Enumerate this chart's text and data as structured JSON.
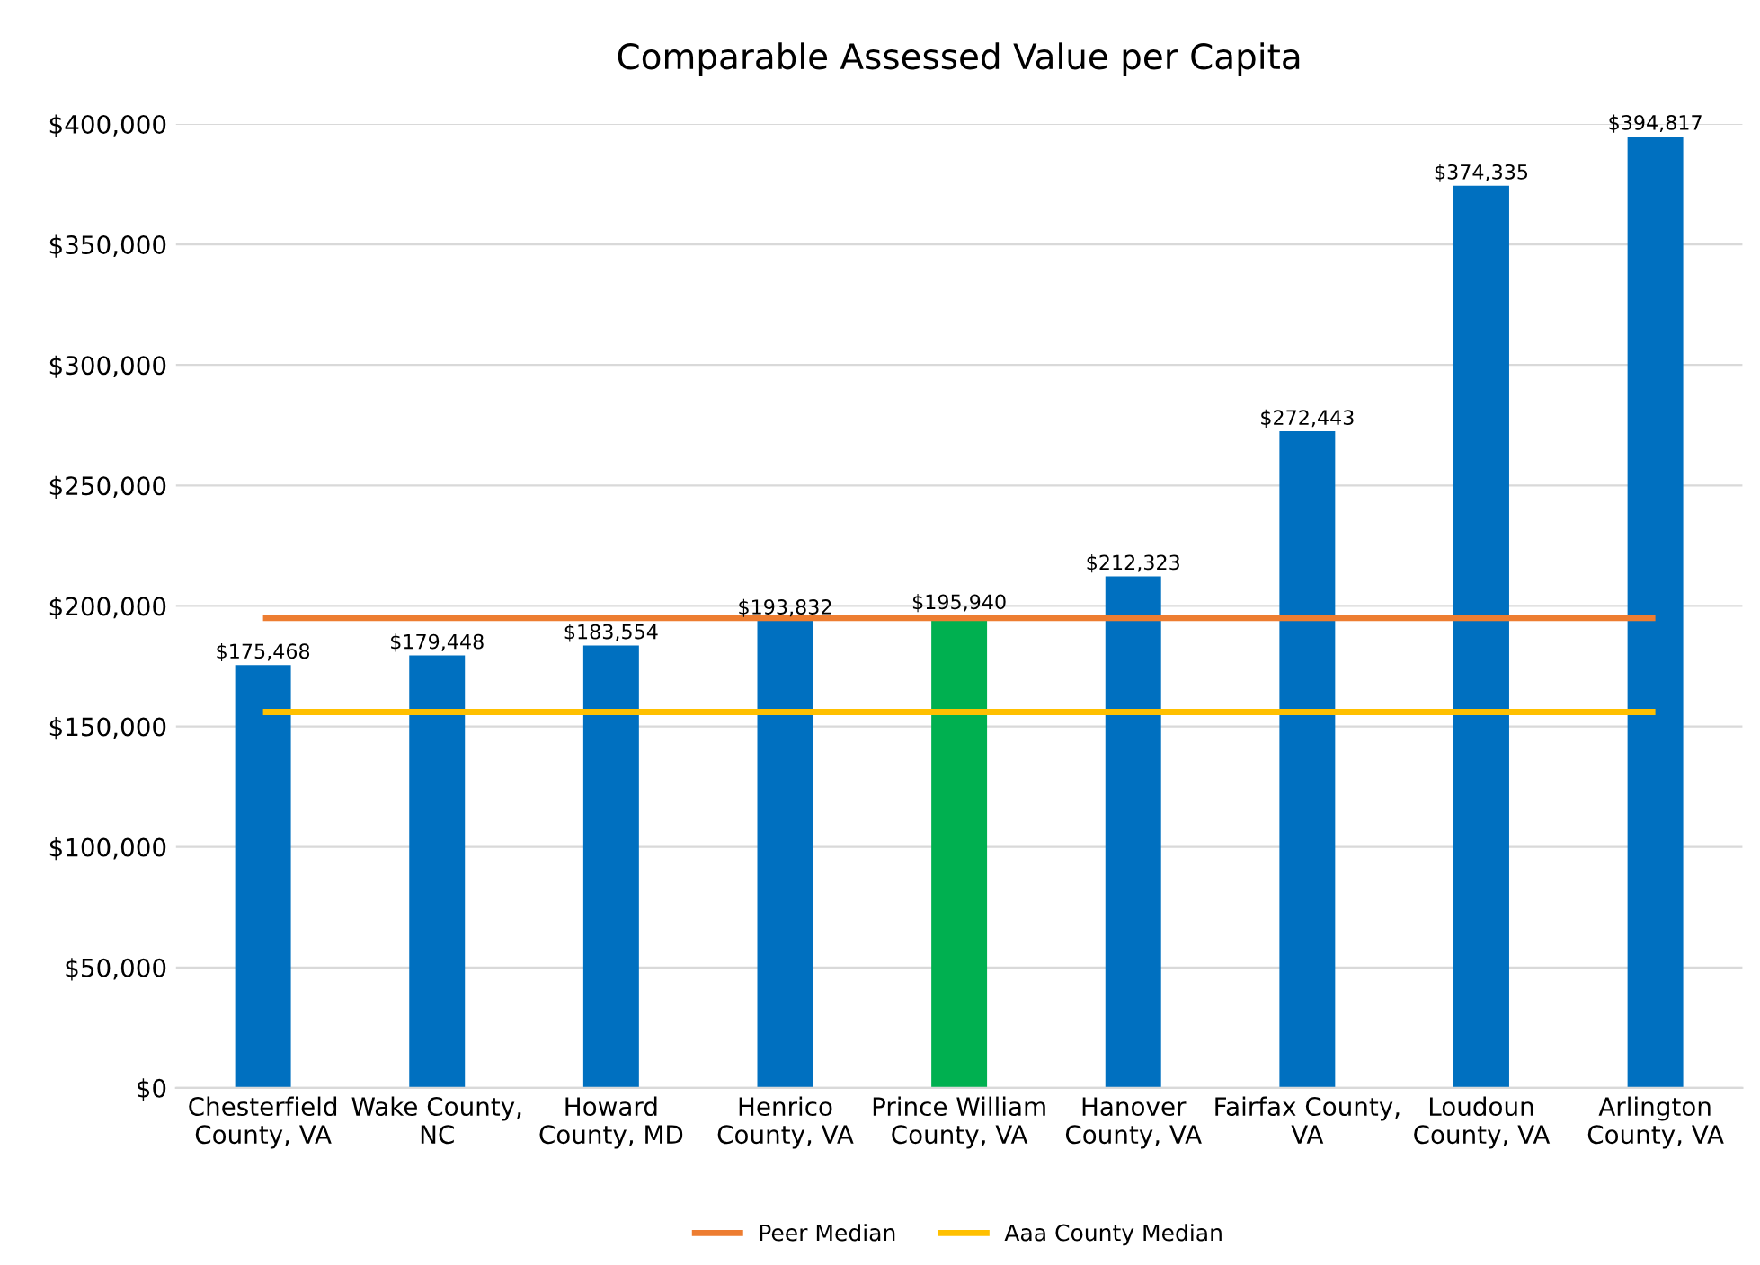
{
  "chart_data": {
    "type": "bar",
    "title": "Comparable Assessed Value per Capita",
    "categories": [
      "Chesterfield\nCounty, VA",
      "Wake County,\nNC",
      "Howard\nCounty, MD",
      "Henrico\nCounty, VA",
      "Prince William\nCounty, VA",
      "Hanover\nCounty, VA",
      "Fairfax County,\nVA",
      "Loudoun\nCounty, VA",
      "Arlington\nCounty, VA"
    ],
    "series": [
      {
        "colors": [
          "#0070c0",
          "#0070c0",
          "#0070c0",
          "#0070c0",
          "#00b050",
          "#0070c0",
          "#0070c0",
          "#0070c0",
          "#0070c0"
        ],
        "values": [
          175468,
          179448,
          183554,
          193832,
          195940,
          212323,
          272443,
          374335,
          394817
        ],
        "value_labels": [
          "$175,468",
          "$179,448",
          "$183,554",
          "$193,832",
          "$195,940",
          "$212,323",
          "$272,443",
          "$374,335",
          "$394,817"
        ]
      },
      {
        "type": "line",
        "name": "Peer Median",
        "color": "#ed7d31",
        "values": [
          195000,
          195000,
          195000,
          195000,
          195000,
          195000,
          195000,
          195000,
          195000
        ]
      },
      {
        "type": "line",
        "name": "Aaa County Median",
        "color": "#ffc000",
        "values": [
          156000,
          156000,
          156000,
          156000,
          156000,
          156000,
          156000,
          156000,
          156000
        ]
      }
    ],
    "ylim": [
      0,
      400000
    ],
    "yticks": [
      {
        "value": 0,
        "label": "$0"
      },
      {
        "value": 50000,
        "label": "$50,000"
      },
      {
        "value": 100000,
        "label": "$100,000"
      },
      {
        "value": 150000,
        "label": "$150,000"
      },
      {
        "value": 200000,
        "label": "$200,000"
      },
      {
        "value": 250000,
        "label": "$250,000"
      },
      {
        "value": 300000,
        "label": "$300,000"
      },
      {
        "value": 350000,
        "label": "$350,000"
      },
      {
        "value": 400000,
        "label": "$400,000"
      }
    ],
    "grid": "y",
    "legend": "bottom",
    "marker": "none",
    "line_style": "solid"
  }
}
